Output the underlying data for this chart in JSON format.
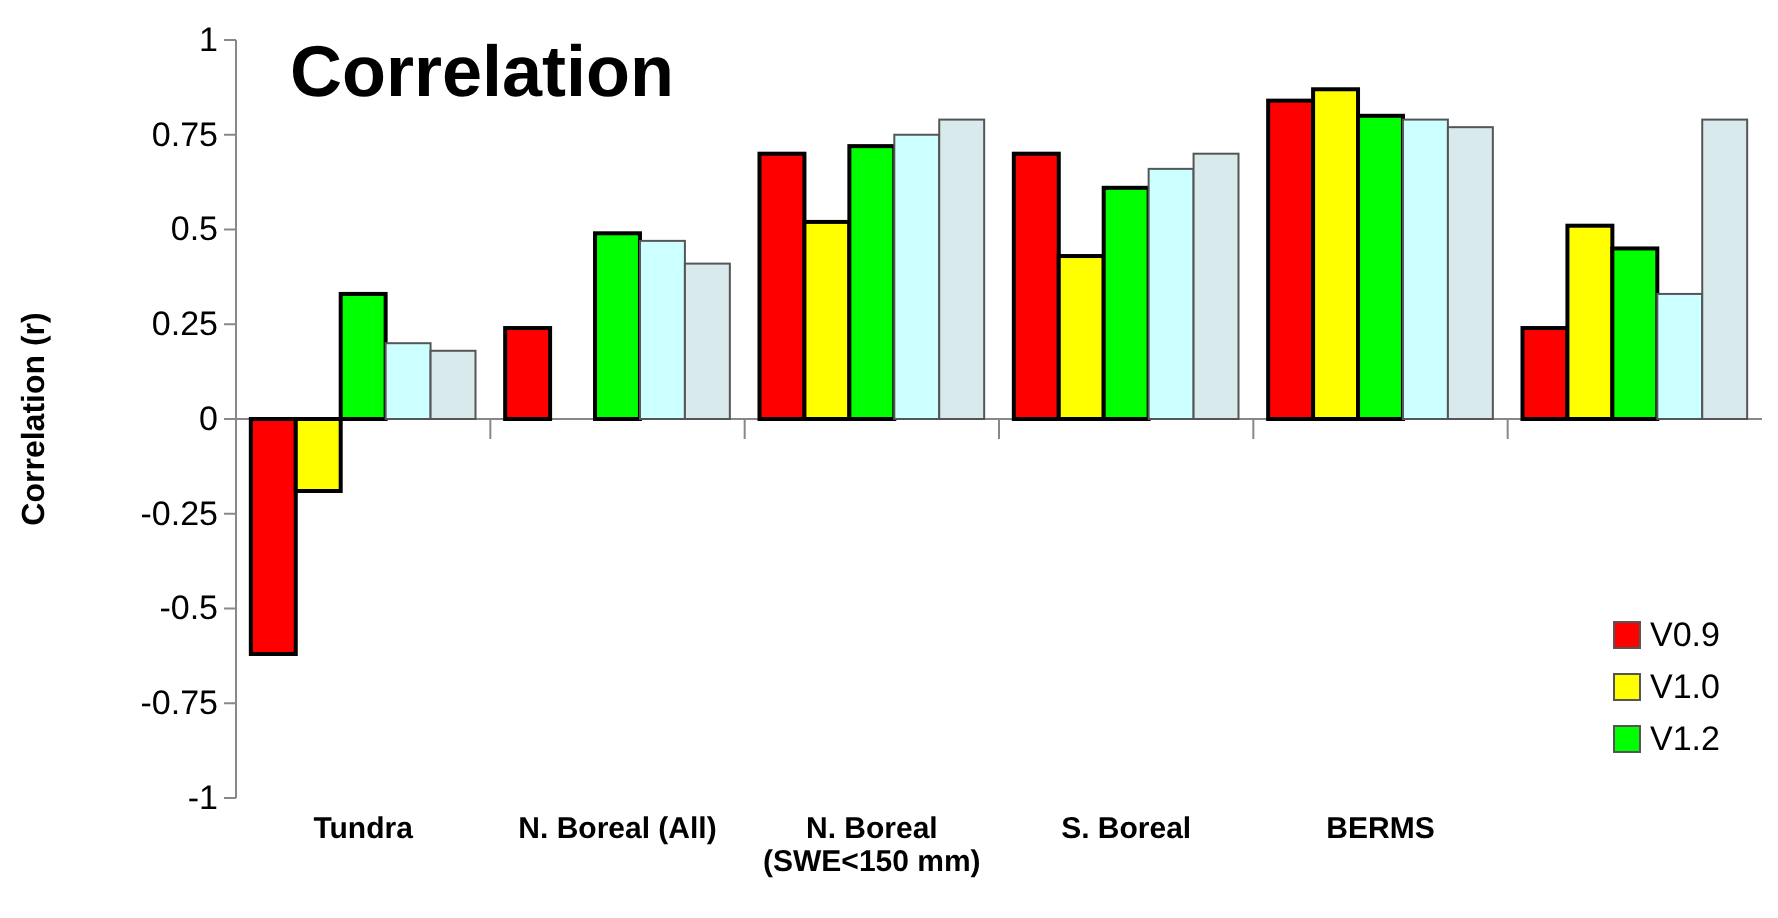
{
  "chart_data": {
    "type": "bar",
    "title": "Correlation",
    "ylabel": "Correlation (r)",
    "categories": [
      "Tundra",
      "N. Boreal (All)",
      "N. Boreal (SWE<150 mm)",
      "S. Boreal",
      "BERMS",
      null
    ],
    "series": [
      {
        "name": "V0.9",
        "color": "#ff0000",
        "values": [
          -0.62,
          0.24,
          0.7,
          0.7,
          0.84,
          0.24
        ]
      },
      {
        "name": "V1.0",
        "color": "#ffff00",
        "values": [
          -0.19,
          null,
          0.52,
          0.43,
          0.87,
          0.51
        ]
      },
      {
        "name": "V1.2",
        "color": "#00ff00",
        "values": [
          0.33,
          0.49,
          0.72,
          0.61,
          0.8,
          0.45
        ]
      },
      {
        "color": "#ccffff",
        "values": [
          0.2,
          0.47,
          0.75,
          0.66,
          0.79,
          0.33
        ]
      },
      {
        "color": "#d9eaec",
        "values": [
          0.18,
          0.41,
          0.79,
          0.7,
          0.77,
          0.79
        ]
      }
    ],
    "ylim": [
      -1,
      1
    ],
    "yticks": [
      -1,
      -0.75,
      -0.5,
      -0.25,
      0,
      0.25,
      0.5,
      0.75,
      1
    ],
    "legend": "bottom right"
  }
}
